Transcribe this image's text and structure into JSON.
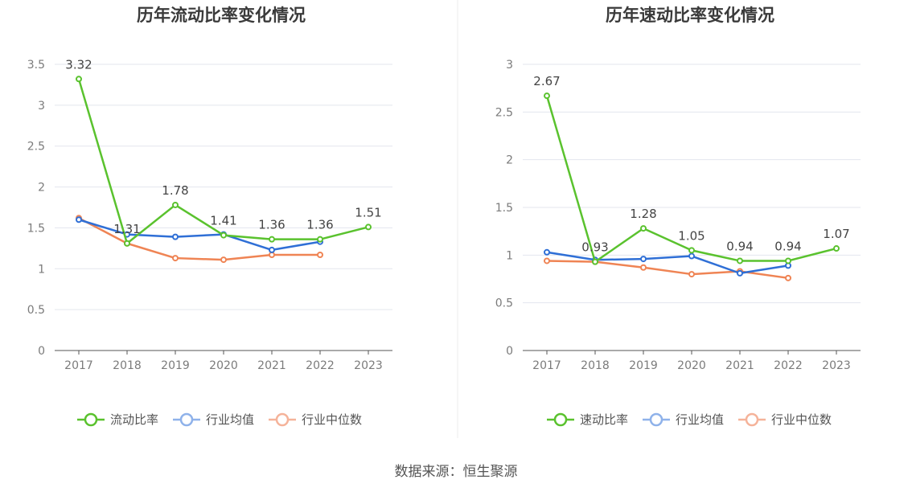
{
  "source": "数据来源：恒生聚源",
  "colors": {
    "company": "#5ac22e",
    "industry_avg": "#2f6fd6",
    "industry_median": "#ef8454",
    "legend_avg": "#8fb2ea",
    "legend_median": "#f5b39a",
    "grid": "#e3e6ee",
    "axis": "#555555"
  },
  "chart_data": [
    {
      "type": "line",
      "title": "历年流动比率变化情况",
      "categories": [
        "2017",
        "2018",
        "2019",
        "2020",
        "2021",
        "2022",
        "2023"
      ],
      "ylim": [
        0,
        3.5
      ],
      "yticks": [
        0,
        0.5,
        1,
        1.5,
        2,
        2.5,
        3,
        3.5
      ],
      "ytick_labels": [
        "0",
        "0.5",
        "1",
        "1.5",
        "2",
        "2.5",
        "3",
        "3.5"
      ],
      "grid": true,
      "legend_position": "bottom",
      "series": [
        {
          "name": "流动比率",
          "key": "company",
          "values": [
            3.32,
            1.31,
            1.78,
            1.41,
            1.36,
            1.36,
            1.51
          ],
          "labels": [
            "3.32",
            "1.31",
            "1.78",
            "1.41",
            "1.36",
            "1.36",
            "1.51"
          ]
        },
        {
          "name": "行业均值",
          "key": "industry_avg",
          "values": [
            1.6,
            1.42,
            1.39,
            1.42,
            1.23,
            1.33,
            null
          ]
        },
        {
          "name": "行业中位数",
          "key": "industry_median",
          "values": [
            1.62,
            1.31,
            1.13,
            1.11,
            1.17,
            1.17,
            null
          ]
        }
      ]
    },
    {
      "type": "line",
      "title": "历年速动比率变化情况",
      "categories": [
        "2017",
        "2018",
        "2019",
        "2020",
        "2021",
        "2022",
        "2023"
      ],
      "ylim": [
        0,
        3
      ],
      "yticks": [
        0,
        0.5,
        1,
        1.5,
        2,
        2.5,
        3
      ],
      "ytick_labels": [
        "0",
        "0.5",
        "1",
        "1.5",
        "2",
        "2.5",
        "3"
      ],
      "grid": true,
      "legend_position": "bottom",
      "series": [
        {
          "name": "速动比率",
          "key": "company",
          "values": [
            2.67,
            0.93,
            1.28,
            1.05,
            0.94,
            0.94,
            1.07
          ],
          "labels": [
            "2.67",
            "0.93",
            "1.28",
            "1.05",
            "0.94",
            "0.94",
            "1.07"
          ]
        },
        {
          "name": "行业均值",
          "key": "industry_avg",
          "values": [
            1.03,
            0.95,
            0.96,
            0.99,
            0.81,
            0.89,
            null
          ]
        },
        {
          "name": "行业中位数",
          "key": "industry_median",
          "values": [
            0.94,
            0.93,
            0.87,
            0.8,
            0.83,
            0.76,
            null
          ]
        }
      ]
    }
  ]
}
